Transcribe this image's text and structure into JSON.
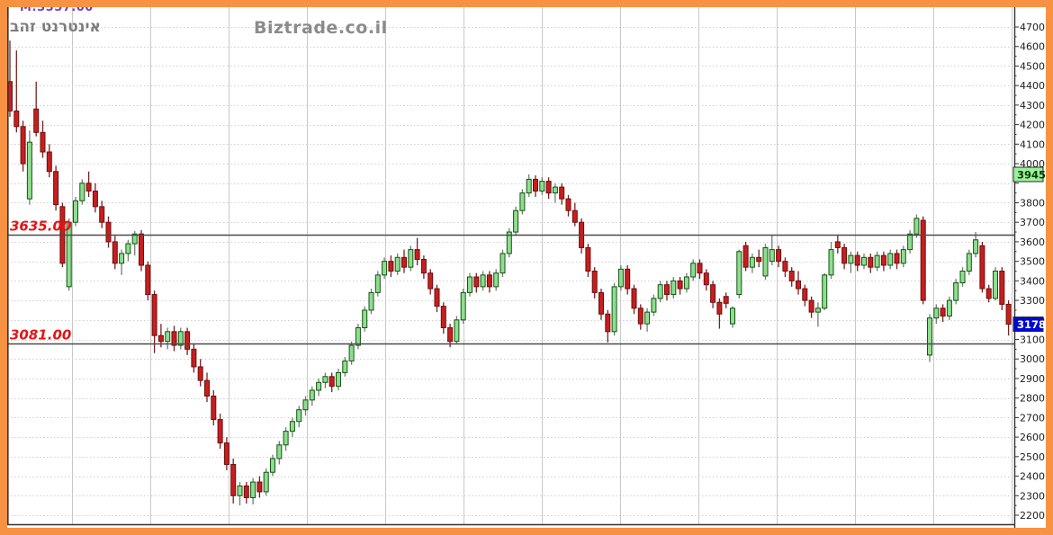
{
  "frame": {
    "border_color": "#F79243",
    "background": "#FFFFFF"
  },
  "header": {
    "instrument_name": "אינטרנט זהב",
    "watermark": "Biztrade.co.il",
    "top_indicator": "M:3557.00",
    "indicator_color": "#7040C8"
  },
  "axis": {
    "side": "right",
    "labels": [
      4700,
      4600,
      4500,
      4400,
      4300,
      4200,
      4100,
      4000,
      3800,
      3700,
      3600,
      3500,
      3400,
      3300,
      3200,
      3100,
      3000,
      2900,
      2800,
      2700,
      2600,
      2500,
      2400,
      2300,
      2200
    ],
    "markers": [
      {
        "name": "high-marker",
        "text": "3945",
        "value": 3945,
        "bg": "#9CF09C",
        "fg": "#063B06",
        "border": "#2b2b2b"
      },
      {
        "name": "last-price-marker",
        "text": "3178",
        "value": 3178,
        "bg": "#0009D0",
        "fg": "#FFFFFF",
        "border": "#2b2b2b"
      }
    ]
  },
  "levels": [
    {
      "label": "3635.00",
      "value": 3635,
      "color": "#E41414",
      "line_color": "#4a4a4a"
    },
    {
      "label": "3081.00",
      "value": 3081,
      "color": "#E41414",
      "line_color": "#4a4a4a"
    }
  ],
  "chart_data": {
    "type": "candlestick",
    "title": "אינטרנט זהב",
    "xlabel": "",
    "ylabel": "",
    "x_labels_visible": false,
    "ylim": [
      2200,
      4700
    ],
    "y_step": 100,
    "grid": true,
    "last_close": 3178,
    "high_marker": 3945,
    "support_resistance": [
      3635,
      3081
    ],
    "colors": {
      "up_fill": "#8FDE8F",
      "up_stroke": "#145214",
      "down_fill": "#C81E1E",
      "down_stroke": "#6B0F0F",
      "wick_up": "#6f7f6f",
      "wick_down": "#7a2020",
      "grid": "#cfcfcf",
      "vgrid": "#c9c9c9",
      "axis": "#333333"
    },
    "candles": [
      [
        4420,
        4630,
        4240,
        4270
      ],
      [
        4270,
        4580,
        4160,
        4190
      ],
      [
        4190,
        4220,
        3960,
        4000
      ],
      [
        3820,
        4170,
        3790,
        4110
      ],
      [
        4280,
        4420,
        4140,
        4160
      ],
      [
        4160,
        4220,
        4030,
        4060
      ],
      [
        4060,
        4100,
        3930,
        3960
      ],
      [
        3960,
        3990,
        3760,
        3790
      ],
      [
        3780,
        3800,
        3470,
        3490
      ],
      [
        3370,
        3720,
        3350,
        3700
      ],
      [
        3700,
        3830,
        3680,
        3810
      ],
      [
        3810,
        3920,
        3790,
        3900
      ],
      [
        3900,
        3960,
        3830,
        3860
      ],
      [
        3860,
        3900,
        3750,
        3780
      ],
      [
        3780,
        3810,
        3670,
        3700
      ],
      [
        3700,
        3730,
        3570,
        3600
      ],
      [
        3600,
        3630,
        3460,
        3490
      ],
      [
        3490,
        3560,
        3430,
        3540
      ],
      [
        3540,
        3610,
        3500,
        3590
      ],
      [
        3590,
        3655,
        3530,
        3640
      ],
      [
        3640,
        3660,
        3450,
        3480
      ],
      [
        3480,
        3500,
        3300,
        3330
      ],
      [
        3330,
        3350,
        3030,
        3120
      ],
      [
        3120,
        3180,
        3060,
        3090
      ],
      [
        3090,
        3160,
        3050,
        3140
      ],
      [
        3140,
        3170,
        3040,
        3070
      ],
      [
        3070,
        3160,
        3050,
        3140
      ],
      [
        3140,
        3160,
        3020,
        3050
      ],
      [
        3050,
        3080,
        2930,
        2960
      ],
      [
        2960,
        3000,
        2860,
        2890
      ],
      [
        2890,
        2930,
        2780,
        2810
      ],
      [
        2810,
        2840,
        2660,
        2690
      ],
      [
        2690,
        2720,
        2540,
        2570
      ],
      [
        2570,
        2600,
        2430,
        2460
      ],
      [
        2460,
        2490,
        2260,
        2300
      ],
      [
        2300,
        2370,
        2250,
        2350
      ],
      [
        2350,
        2370,
        2260,
        2290
      ],
      [
        2290,
        2390,
        2255,
        2370
      ],
      [
        2370,
        2400,
        2290,
        2320
      ],
      [
        2320,
        2440,
        2300,
        2420
      ],
      [
        2420,
        2510,
        2400,
        2490
      ],
      [
        2490,
        2580,
        2460,
        2560
      ],
      [
        2560,
        2650,
        2530,
        2630
      ],
      [
        2630,
        2700,
        2600,
        2680
      ],
      [
        2680,
        2760,
        2650,
        2740
      ],
      [
        2740,
        2810,
        2710,
        2790
      ],
      [
        2790,
        2860,
        2760,
        2840
      ],
      [
        2840,
        2900,
        2810,
        2880
      ],
      [
        2880,
        2930,
        2850,
        2910
      ],
      [
        2910,
        2930,
        2830,
        2860
      ],
      [
        2860,
        2950,
        2840,
        2930
      ],
      [
        2930,
        3010,
        2910,
        2990
      ],
      [
        2990,
        3090,
        2970,
        3070
      ],
      [
        3070,
        3180,
        3050,
        3160
      ],
      [
        3160,
        3270,
        3140,
        3250
      ],
      [
        3250,
        3360,
        3230,
        3340
      ],
      [
        3340,
        3450,
        3320,
        3430
      ],
      [
        3430,
        3520,
        3410,
        3500
      ],
      [
        3500,
        3530,
        3420,
        3450
      ],
      [
        3450,
        3540,
        3430,
        3520
      ],
      [
        3520,
        3560,
        3440,
        3470
      ],
      [
        3470,
        3580,
        3450,
        3560
      ],
      [
        3560,
        3620,
        3480,
        3510
      ],
      [
        3510,
        3530,
        3410,
        3440
      ],
      [
        3440,
        3460,
        3330,
        3360
      ],
      [
        3360,
        3380,
        3240,
        3270
      ],
      [
        3270,
        3290,
        3130,
        3160
      ],
      [
        3160,
        3180,
        3060,
        3090
      ],
      [
        3090,
        3220,
        3080,
        3200
      ],
      [
        3200,
        3360,
        3180,
        3340
      ],
      [
        3340,
        3440,
        3320,
        3420
      ],
      [
        3420,
        3440,
        3340,
        3370
      ],
      [
        3370,
        3450,
        3350,
        3430
      ],
      [
        3430,
        3450,
        3340,
        3370
      ],
      [
        3370,
        3460,
        3350,
        3440
      ],
      [
        3440,
        3560,
        3420,
        3540
      ],
      [
        3540,
        3670,
        3520,
        3650
      ],
      [
        3650,
        3780,
        3630,
        3760
      ],
      [
        3760,
        3870,
        3740,
        3850
      ],
      [
        3850,
        3945,
        3830,
        3920
      ],
      [
        3920,
        3940,
        3830,
        3860
      ],
      [
        3860,
        3930,
        3840,
        3910
      ],
      [
        3910,
        3930,
        3820,
        3850
      ],
      [
        3850,
        3900,
        3800,
        3880
      ],
      [
        3880,
        3900,
        3790,
        3820
      ],
      [
        3820,
        3840,
        3730,
        3760
      ],
      [
        3760,
        3800,
        3680,
        3700
      ],
      [
        3700,
        3720,
        3540,
        3570
      ],
      [
        3570,
        3590,
        3420,
        3450
      ],
      [
        3450,
        3470,
        3310,
        3340
      ],
      [
        3340,
        3360,
        3200,
        3230
      ],
      [
        3230,
        3250,
        3085,
        3140
      ],
      [
        3140,
        3390,
        3120,
        3370
      ],
      [
        3370,
        3480,
        3350,
        3460
      ],
      [
        3460,
        3480,
        3330,
        3360
      ],
      [
        3360,
        3380,
        3230,
        3260
      ],
      [
        3260,
        3280,
        3150,
        3180
      ],
      [
        3180,
        3260,
        3140,
        3240
      ],
      [
        3240,
        3330,
        3220,
        3310
      ],
      [
        3310,
        3400,
        3290,
        3380
      ],
      [
        3380,
        3400,
        3300,
        3330
      ],
      [
        3330,
        3420,
        3310,
        3400
      ],
      [
        3400,
        3420,
        3330,
        3360
      ],
      [
        3360,
        3440,
        3340,
        3420
      ],
      [
        3420,
        3510,
        3400,
        3490
      ],
      [
        3490,
        3510,
        3410,
        3440
      ],
      [
        3440,
        3460,
        3350,
        3380
      ],
      [
        3380,
        3400,
        3260,
        3290
      ],
      [
        3290,
        3310,
        3155,
        3230
      ],
      [
        3320,
        3340,
        3260,
        3285
      ],
      [
        3180,
        3270,
        3160,
        3260
      ],
      [
        3330,
        3560,
        3310,
        3550
      ],
      [
        3580,
        3600,
        3450,
        3470
      ],
      [
        3470,
        3540,
        3440,
        3520
      ],
      [
        3520,
        3560,
        3470,
        3500
      ],
      [
        3425,
        3590,
        3405,
        3570
      ],
      [
        3500,
        3635,
        3480,
        3560
      ],
      [
        3560,
        3580,
        3470,
        3500
      ],
      [
        3500,
        3520,
        3420,
        3450
      ],
      [
        3450,
        3470,
        3370,
        3400
      ],
      [
        3400,
        3450,
        3330,
        3360
      ],
      [
        3360,
        3380,
        3270,
        3300
      ],
      [
        3300,
        3320,
        3210,
        3240
      ],
      [
        3240,
        3290,
        3165,
        3260
      ],
      [
        3260,
        3440,
        3250,
        3430
      ],
      [
        3430,
        3600,
        3410,
        3560
      ],
      [
        3600,
        3635,
        3540,
        3570
      ],
      [
        3570,
        3590,
        3460,
        3490
      ],
      [
        3490,
        3550,
        3440,
        3530
      ],
      [
        3530,
        3550,
        3450,
        3480
      ],
      [
        3480,
        3540,
        3460,
        3520
      ],
      [
        3520,
        3540,
        3440,
        3470
      ],
      [
        3470,
        3550,
        3450,
        3530
      ],
      [
        3530,
        3550,
        3450,
        3480
      ],
      [
        3480,
        3560,
        3460,
        3540
      ],
      [
        3540,
        3560,
        3460,
        3490
      ],
      [
        3490,
        3580,
        3470,
        3560
      ],
      [
        3560,
        3660,
        3540,
        3640
      ],
      [
        3640,
        3740,
        3620,
        3720
      ],
      [
        3710,
        3730,
        3280,
        3300
      ],
      [
        3020,
        3230,
        2985,
        3210
      ],
      [
        3210,
        3280,
        3180,
        3260
      ],
      [
        3260,
        3280,
        3190,
        3220
      ],
      [
        3220,
        3320,
        3200,
        3300
      ],
      [
        3300,
        3410,
        3280,
        3390
      ],
      [
        3390,
        3470,
        3370,
        3450
      ],
      [
        3450,
        3560,
        3430,
        3540
      ],
      [
        3540,
        3650,
        3520,
        3610
      ],
      [
        3580,
        3600,
        3340,
        3360
      ],
      [
        3360,
        3380,
        3290,
        3310
      ],
      [
        3310,
        3470,
        3300,
        3450
      ],
      [
        3450,
        3470,
        3250,
        3280
      ],
      [
        3280,
        3300,
        3120,
        3178
      ]
    ]
  }
}
